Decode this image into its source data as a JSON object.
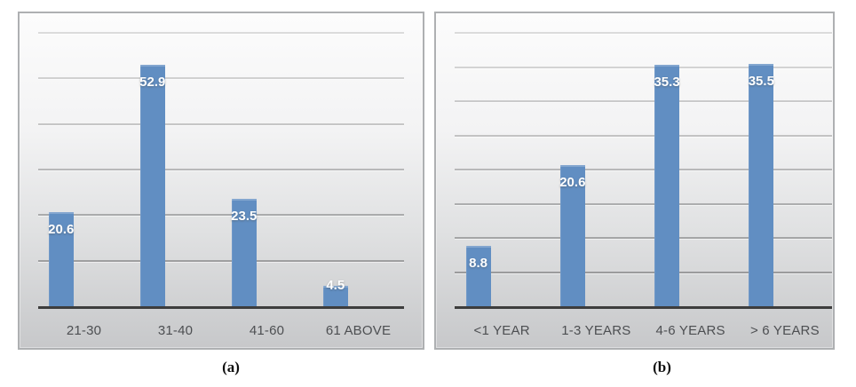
{
  "figure": {
    "background": "#ffffff"
  },
  "chart_data": [
    {
      "type": "bar",
      "caption": "(a)",
      "title": "",
      "xlabel": "",
      "ylabel": "",
      "categories": [
        "21-30",
        "31-40",
        "41-60",
        "61 ABOVE"
      ],
      "values": [
        20.6,
        52.9,
        23.5,
        4.5
      ],
      "labels": [
        "20.6",
        "52.9",
        "23.5",
        "4.5"
      ],
      "ylim": [
        0,
        60
      ],
      "grid_step": 10,
      "grid": true,
      "legend": false,
      "bar_color": "#618ec2",
      "label_color": "#ffffff",
      "axis_color": "#3d3d3d"
    },
    {
      "type": "bar",
      "caption": "(b)",
      "title": "",
      "xlabel": "",
      "ylabel": "",
      "categories": [
        "<1 YEAR",
        "1-3 YEARS",
        "4-6 YEARS",
        "> 6 YEARS"
      ],
      "values": [
        8.8,
        20.6,
        35.3,
        35.5
      ],
      "labels": [
        "8.8",
        "20.6",
        "35.3",
        "35.5"
      ],
      "ylim": [
        0,
        40
      ],
      "grid_step": 5,
      "grid": true,
      "legend": false,
      "bar_color": "#618ec2",
      "label_color": "#ffffff",
      "axis_color": "#3d3d3d"
    }
  ]
}
